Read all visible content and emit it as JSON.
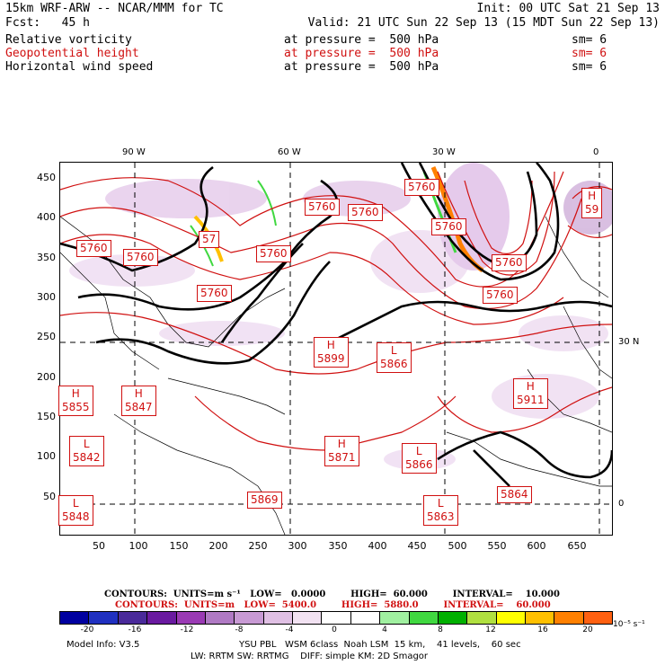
{
  "header": {
    "line1_left": "15km WRF-ARW -- NCAR/MMM for TC",
    "line1_right": "Init: 00 UTC Sat 21 Sep 13",
    "line2_left": "Fcst:   45 h",
    "line2_right": "Valid: 21 UTC Sun 22 Sep 13 (15 MDT Sun 22 Sep 13)",
    "fields": [
      {
        "name": "Relative vorticity",
        "level": "at pressure =  500 hPa",
        "smooth": "sm= 6",
        "color": "#000000"
      },
      {
        "name": "Geopotential height",
        "level": "at pressure =  500 hPa",
        "smooth": "sm= 6",
        "color": "#d01010"
      },
      {
        "name": "Horizontal wind speed",
        "level": "at pressure =  500 hPa",
        "smooth": "sm= 6",
        "color": "#000000"
      }
    ]
  },
  "axes": {
    "y_ticks": [
      "450",
      "400",
      "350",
      "300",
      "250",
      "200",
      "150",
      "100",
      "50"
    ],
    "x_ticks": [
      "50",
      "100",
      "150",
      "200",
      "250",
      "300",
      "350",
      "400",
      "450",
      "500",
      "550",
      "600",
      "650"
    ],
    "lon_labels": [
      "90 W",
      "60 W",
      "30 W",
      "0"
    ],
    "lat_labels": [
      "30 N",
      "0"
    ]
  },
  "map": {
    "centers": [
      {
        "type": "",
        "value": "5760"
      },
      {
        "type": "",
        "value": "5760"
      },
      {
        "type": "",
        "value": "5760"
      },
      {
        "type": "",
        "value": "5760"
      },
      {
        "type": "",
        "value": "5760"
      },
      {
        "type": "",
        "value": "5760"
      },
      {
        "type": "",
        "value": "5760"
      },
      {
        "type": "",
        "value": "5760"
      },
      {
        "type": "",
        "value": "57"
      },
      {
        "type": "",
        "value": "5760"
      },
      {
        "type": "",
        "value": "5760"
      },
      {
        "type": "H",
        "value": "59"
      },
      {
        "type": "H",
        "value": "5899"
      },
      {
        "type": "L",
        "value": "5866"
      },
      {
        "type": "H",
        "value": "5855"
      },
      {
        "type": "H",
        "value": "5847"
      },
      {
        "type": "H",
        "value": "5911"
      },
      {
        "type": "L",
        "value": "5842"
      },
      {
        "type": "H",
        "value": "5871"
      },
      {
        "type": "L",
        "value": "5866"
      },
      {
        "type": "L",
        "value": "5848"
      },
      {
        "type": "",
        "value": "5869"
      },
      {
        "type": "L",
        "value": "5863"
      },
      {
        "type": "",
        "value": "5864"
      }
    ]
  },
  "contour_info": {
    "black_line": "CONTOURS:  UNITS=m s⁻¹   LOW=   0.0000        HIGH=  60.000        INTERVAL=    10.000",
    "red_line": "CONTOURS:  UNITS=m   LOW=  5400.0        HIGH=  5880.0        INTERVAL=    60.000"
  },
  "colorbar": {
    "colors": [
      "#0000a0",
      "#2030c0",
      "#4a2a9a",
      "#6a1aa0",
      "#9a3ab4",
      "#b07ac4",
      "#c89ad4",
      "#e0c0e4",
      "#f2e2f2",
      "#ffffff",
      "#ffffff",
      "#a0f0a0",
      "#40d840",
      "#00b000",
      "#b0e040",
      "#ffff00",
      "#ffc000",
      "#ff8000",
      "#ff6010"
    ],
    "labels": [
      "-20",
      "-16",
      "-12",
      "-8",
      "-4",
      "0",
      "4",
      "8",
      "12",
      "16",
      "20"
    ],
    "units": "10⁻⁵ s⁻¹"
  },
  "footer": {
    "model_info": "Model Info: V3.5",
    "line1": "YSU PBL   WSM 6class  Noah LSM  15 km,    41 levels,    60 sec",
    "line2": "LW: RRTM SW: RRTMG    DIFF: simple KM: 2D Smagor"
  }
}
